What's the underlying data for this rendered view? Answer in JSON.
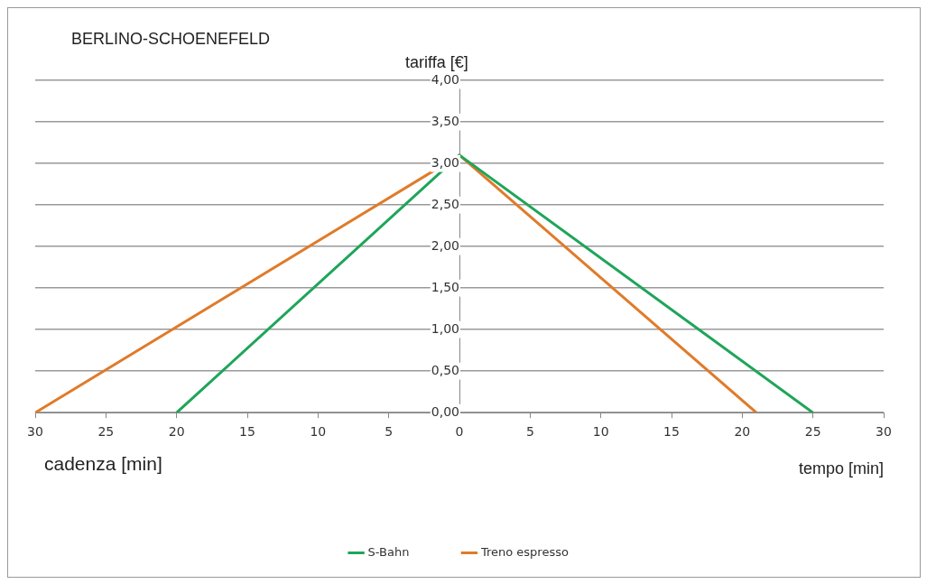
{
  "chart_data": {
    "type": "line",
    "title": "BERLINO-SCHOENEFELD",
    "xlabel": "tempo [min]",
    "ylabel": "tariffa [€]",
    "annotations": [
      "cadenza [min]"
    ],
    "series": [
      {
        "name": "S-Bahn",
        "color": "#1fa55a",
        "x": [
          -20,
          0,
          25
        ],
        "values": [
          0,
          3.1,
          0
        ]
      },
      {
        "name": "Treno espresso",
        "color": "#e07b2a",
        "x": [
          -30,
          0,
          21
        ],
        "values": [
          0,
          3.1,
          0
        ]
      }
    ],
    "xlim": [
      -30,
      30
    ],
    "xticks": [
      {
        "value": -30,
        "label": "30"
      },
      {
        "value": -25,
        "label": "25"
      },
      {
        "value": -20,
        "label": "20"
      },
      {
        "value": -15,
        "label": "15"
      },
      {
        "value": -10,
        "label": "10"
      },
      {
        "value": -5,
        "label": "5"
      },
      0,
      5,
      10,
      15,
      20,
      25,
      30
    ],
    "ylim": [
      0,
      4
    ],
    "yticks": [
      {
        "value": 0,
        "label": "0,00"
      },
      {
        "value": 0.5,
        "label": "0,50"
      },
      {
        "value": 1,
        "label": "1,00"
      },
      {
        "value": 1.5,
        "label": "1,50"
      },
      {
        "value": 2,
        "label": "2,00"
      },
      {
        "value": 2.5,
        "label": "2,50"
      },
      {
        "value": 3,
        "label": "3,00"
      },
      {
        "value": 3.5,
        "label": "3,50"
      },
      {
        "value": 4,
        "label": "4,00"
      }
    ],
    "grid": "y",
    "legend": "bottom",
    "marker": "none",
    "line_style": "solid"
  }
}
